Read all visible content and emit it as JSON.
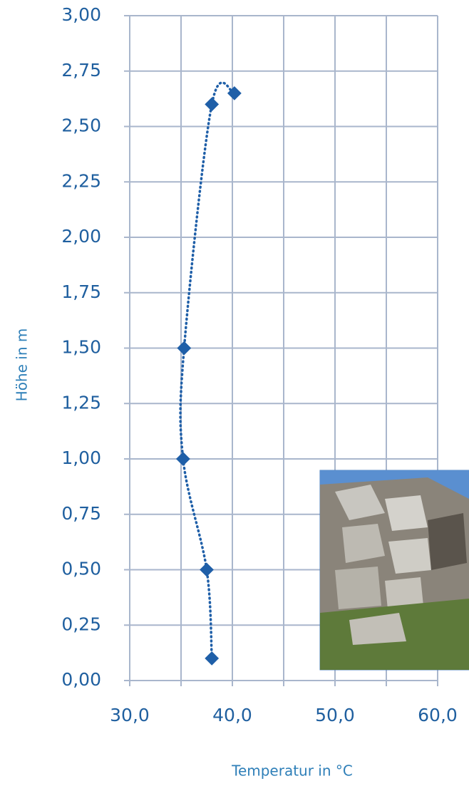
{
  "chart_data": {
    "type": "scatter",
    "x_label": "Temperatur in °C",
    "y_label": "Höhe in m",
    "x": [
      38.0,
      37.5,
      35.2,
      35.3,
      38.0,
      40.2
    ],
    "values": [
      0.1,
      0.5,
      1.0,
      1.5,
      2.6,
      2.65
    ],
    "color": "#1f5fa8",
    "line": "dotted-smooth",
    "xlim": [
      30,
      60
    ],
    "xticks": [
      {
        "value": 30,
        "label": "30,0"
      },
      {
        "value": 40,
        "label": "40,0"
      },
      {
        "value": 50,
        "label": "50,0"
      },
      {
        "value": 60,
        "label": "60,0"
      }
    ],
    "xminor": [
      35,
      45,
      55
    ],
    "ylim": [
      0,
      3
    ],
    "yticks": [
      {
        "value": 0,
        "label": "0,00"
      },
      {
        "value": 0.25,
        "label": "0,25"
      },
      {
        "value": 0.5,
        "label": "0,50"
      },
      {
        "value": 0.75,
        "label": "0,75"
      },
      {
        "value": 1,
        "label": "1,00"
      },
      {
        "value": 1.25,
        "label": "1,25"
      },
      {
        "value": 1.5,
        "label": "1,50"
      },
      {
        "value": 1.75,
        "label": "1,75"
      },
      {
        "value": 2,
        "label": "2,00"
      },
      {
        "value": 2.25,
        "label": "2,25"
      },
      {
        "value": 2.5,
        "label": "2,50"
      },
      {
        "value": 2.75,
        "label": "2,75"
      },
      {
        "value": 3,
        "label": "3,00"
      }
    ],
    "grid": true
  }
}
